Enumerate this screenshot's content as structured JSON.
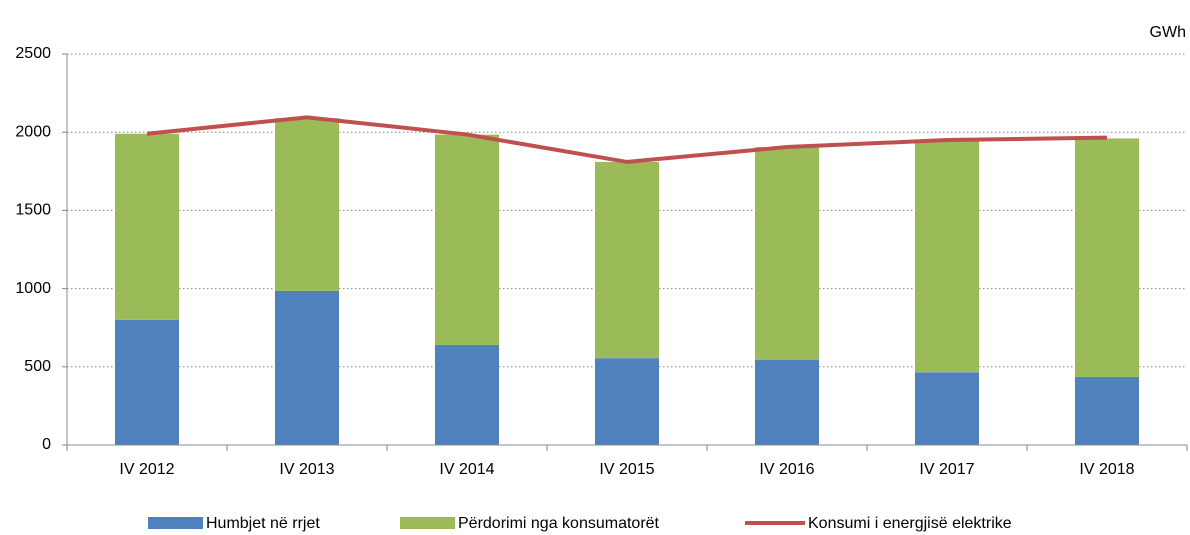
{
  "chart_data": {
    "type": "bar",
    "stacked": true,
    "unit_label": "GWh",
    "categories": [
      "IV 2012",
      "IV 2013",
      "IV 2014",
      "IV 2015",
      "IV 2016",
      "IV 2017",
      "IV 2018"
    ],
    "series": [
      {
        "name": "Humbjet në rrjet",
        "type": "bar",
        "color": "#4f81bd",
        "values": [
          800,
          985,
          640,
          555,
          545,
          465,
          435
        ]
      },
      {
        "name": "Përdorimi nga konsumatorët",
        "type": "bar",
        "color": "#9bbb59",
        "values": [
          1190,
          1105,
          1345,
          1255,
          1360,
          1485,
          1525
        ]
      },
      {
        "name": "Konsumi i energjisë elektrike",
        "type": "line",
        "color": "#c0504d",
        "values": [
          1990,
          2095,
          1985,
          1810,
          1905,
          1950,
          1965
        ]
      }
    ],
    "ylim": [
      0,
      2500
    ],
    "yticks": [
      0,
      500,
      1000,
      1500,
      2000,
      2500
    ],
    "grid": true,
    "legend": "bottom"
  }
}
